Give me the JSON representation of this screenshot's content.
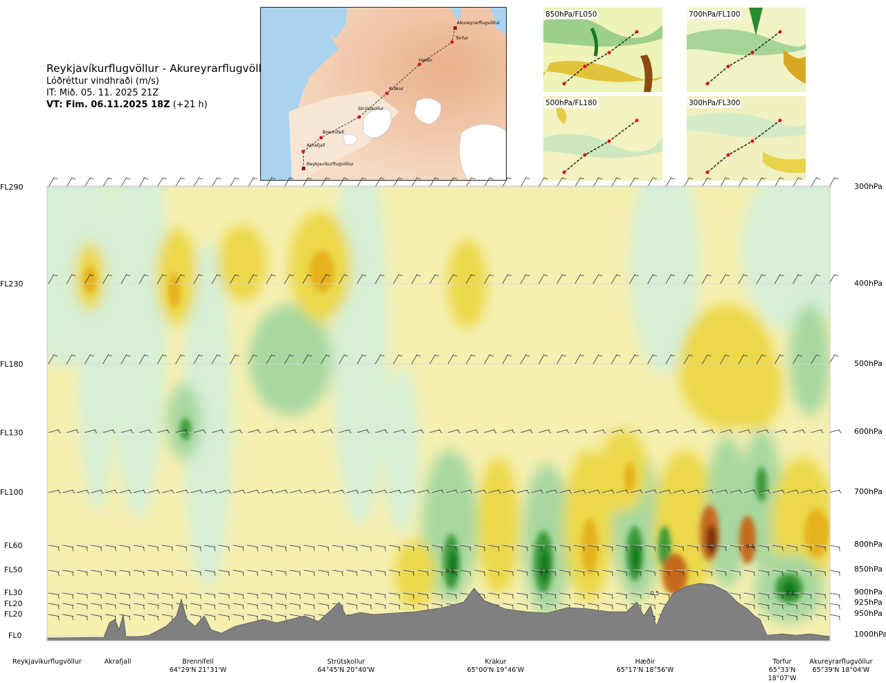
{
  "header": {
    "route_title": "Reykjavíkurflugvöllur - Akureyrarflugvöllur",
    "parameter": "Lóðréttur vindhraði (m/s)",
    "analysis_time": "IT: Mið. 05. 11. 2025 21Z",
    "valid_time_bold": "VT: Fim. 06.11.2025 18Z",
    "lead_time": "(+21 h)"
  },
  "route_map": {
    "waypoints": [
      "Akureyrarflugvöllur",
      "Torfur",
      "Hæðir",
      "Krákur",
      "Strútskollur",
      "Brennifell",
      "Akrafjall",
      "Reykjavíkurflugvöllur"
    ]
  },
  "level_maps": [
    {
      "label": "850hPa/FL050"
    },
    {
      "label": "700hPa/FL100"
    },
    {
      "label": "500hPa/FL180"
    },
    {
      "label": "300hPa/FL300"
    }
  ],
  "chart_data": {
    "type": "heatmap",
    "title": "Lóðréttur vindhraði (m/s)",
    "flight_levels": [
      "FL290",
      "FL230",
      "FL180",
      "FL130",
      "FL100",
      "FL60",
      "FL50",
      "FL30",
      "FL20",
      "FL20",
      "FL0"
    ],
    "pressure_levels": [
      "300hPa",
      "400hPa",
      "500hPa",
      "600hPa",
      "700hPa",
      "800hPa",
      "850hPa",
      "900hPa",
      "925hPa",
      "950hPa",
      "1000hPa"
    ],
    "pressure_values_hpa": [
      300,
      400,
      500,
      600,
      700,
      800,
      850,
      900,
      925,
      950,
      1000
    ],
    "x_locations": [
      {
        "name": "Reykjavíkurflugvöllur",
        "coord": ""
      },
      {
        "name": "Akrafjall",
        "coord": ""
      },
      {
        "name": "Brennifell",
        "coord": "64°29'N 21°31'W"
      },
      {
        "name": "Strútskollur",
        "coord": "64°45'N 20°40'W"
      },
      {
        "name": "Krákur",
        "coord": "65°00'N 19°46'W"
      },
      {
        "name": "Hæðir",
        "coord": "65°17'N 18°56'W"
      },
      {
        "name": "Torfur",
        "coord": "65°33'N 18°07'W"
      },
      {
        "name": "Akureyrarflugvöllur",
        "coord": "65°39'N 18°04'W"
      }
    ],
    "value_labels": [
      "0.5",
      "0.6",
      "0.5",
      "0.7",
      "0.6",
      "0.6"
    ],
    "colors": {
      "strong_up": "#0f7a1b",
      "up": "#3a9a3a",
      "weak_up": "#a8d8a0",
      "very_weak_up": "#d6efd6",
      "neutral": "#fdfbe0",
      "very_weak_down": "#f5efb0",
      "weak_down": "#ecd84a",
      "down": "#e6b21f",
      "strong_down": "#c56a1a",
      "very_strong_down": "#7a3411",
      "terrain": "#808080"
    }
  }
}
